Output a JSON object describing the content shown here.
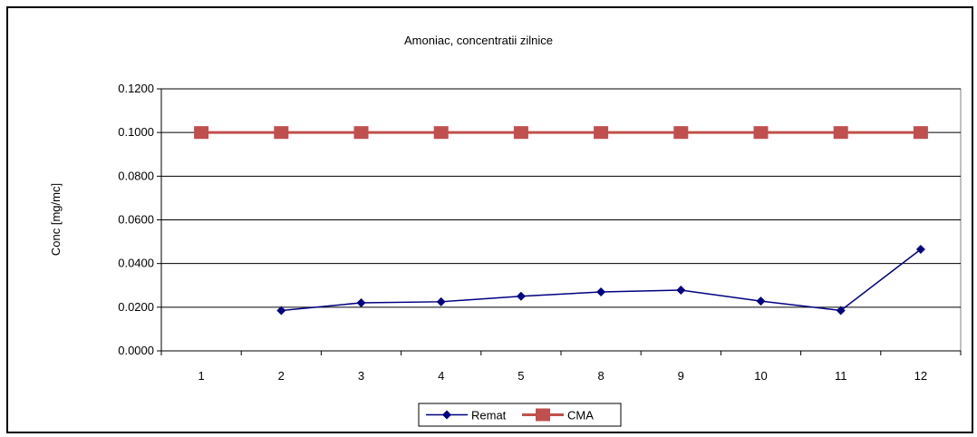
{
  "chart_data": {
    "type": "line",
    "title": "Amoniac, concentratii zilnice",
    "xlabel": "",
    "ylabel": "Conc [mg/mc]",
    "categories": [
      "1",
      "2",
      "3",
      "4",
      "5",
      "8",
      "9",
      "10",
      "11",
      "12"
    ],
    "yticks": [
      "0.0000",
      "0.0200",
      "0.0400",
      "0.0600",
      "0.0800",
      "0.1000",
      "0.1200"
    ],
    "ylim": [
      0,
      0.12
    ],
    "grid": true,
    "legend_position": "bottom",
    "series": [
      {
        "name": "Remat",
        "color": "#000080",
        "marker": "diamond",
        "values": [
          null,
          0.0185,
          0.022,
          0.0225,
          0.025,
          0.027,
          0.0278,
          0.0228,
          0.0185,
          0.0465
        ]
      },
      {
        "name": "CMA",
        "color": "#C0504D",
        "marker": "square",
        "values": [
          0.1,
          0.1,
          0.1,
          0.1,
          0.1,
          0.1,
          0.1,
          0.1,
          0.1,
          0.1
        ]
      }
    ]
  }
}
